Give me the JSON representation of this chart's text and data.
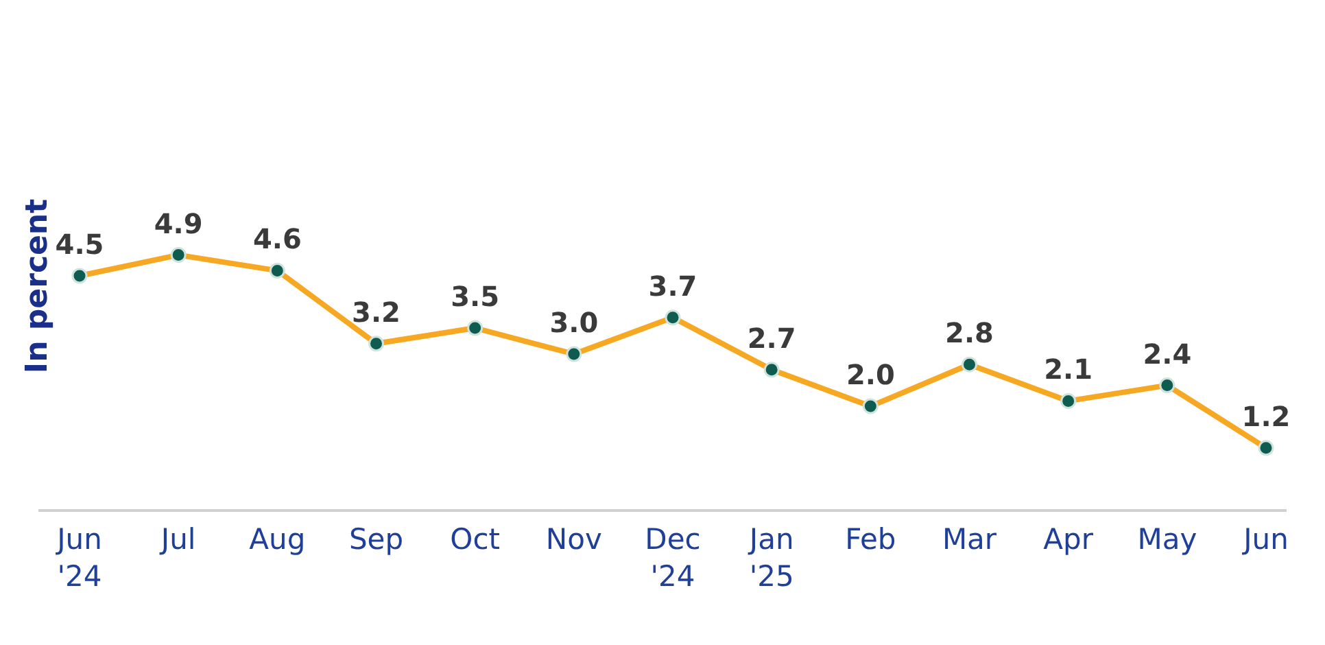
{
  "chart_data": {
    "type": "line",
    "ylabel": "In percent",
    "categories": [
      "Jun\n'24",
      "Jul",
      "Aug",
      "Sep",
      "Oct",
      "Nov",
      "Dec\n'24",
      "Jan\n'25",
      "Feb",
      "Mar",
      "Apr",
      "May",
      "Jun"
    ],
    "series": [
      {
        "color": "#f7a823",
        "values": [
          4.5,
          4.9,
          4.6,
          3.2,
          3.5,
          3.0,
          3.7,
          2.7,
          2.0,
          2.8,
          2.1,
          2.4,
          1.2
        ],
        "value_labels": [
          "4.5",
          "4.9",
          "4.6",
          "3.2",
          "3.5",
          "3.0",
          "3.7",
          "2.7",
          "2.0",
          "2.8",
          "2.1",
          "2.4",
          "1.2"
        ]
      }
    ],
    "marker": "circle",
    "grid": false,
    "legend": false
  }
}
